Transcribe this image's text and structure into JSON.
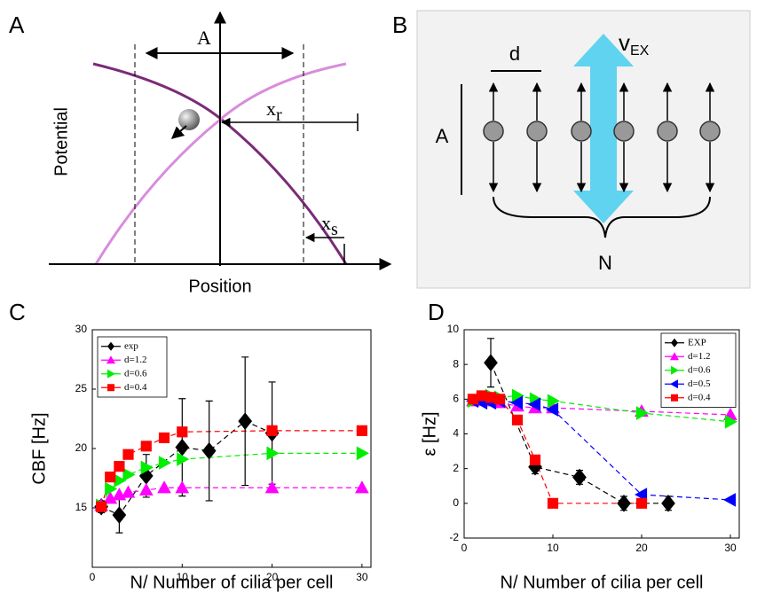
{
  "panels": {
    "A": {
      "letter": "A",
      "amplitude": "A",
      "x_r": {
        "base": "x",
        "sub": "r"
      },
      "x_s": {
        "base": "x",
        "sub": "s"
      },
      "y_label": "Potential",
      "x_label": "Position"
    },
    "B": {
      "letter": "B",
      "d": "d",
      "v": {
        "base": "v",
        "sub": "EX"
      },
      "amplitude": "A",
      "n": "N"
    }
  },
  "chart_data": [
    {
      "type": "line",
      "panel": "C",
      "x_label": "N/ Number of cilia per cell",
      "y_label": "CBF [Hz]",
      "xlim": [
        0,
        31
      ],
      "ylim": [
        10,
        30
      ],
      "xticks": [
        0,
        10,
        20,
        30
      ],
      "yticks": [
        15,
        20,
        25,
        30
      ],
      "line_style": "dashed",
      "legend": "upper-left",
      "series": [
        {
          "name": "exp",
          "color": "#000000",
          "marker": "diamond",
          "x": [
            1,
            3,
            6,
            10,
            13,
            17,
            20
          ],
          "values": [
            15.1,
            14.4,
            17.7,
            20.1,
            19.8,
            22.3,
            21.3
          ],
          "errors": [
            0.5,
            1.5,
            1.8,
            4.1,
            4.2,
            5.4,
            4.3
          ]
        },
        {
          "name": "d=1.2",
          "color": "#ff00ff",
          "marker": "triangle-up",
          "x": [
            1,
            2,
            3,
            4,
            6,
            8,
            10,
            20,
            30
          ],
          "values": [
            15.2,
            15.8,
            16.1,
            16.3,
            16.5,
            16.7,
            16.7,
            16.7,
            16.7
          ]
        },
        {
          "name": "d=0.6",
          "color": "#00ee00",
          "marker": "triangle-right",
          "x": [
            1,
            2,
            3,
            4,
            6,
            8,
            10,
            20,
            30
          ],
          "values": [
            15.2,
            16.6,
            17.3,
            17.8,
            18.4,
            18.8,
            19.1,
            19.6,
            19.6
          ]
        },
        {
          "name": "d=0.4",
          "color": "#ff0000",
          "marker": "square",
          "x": [
            1,
            2,
            3,
            4,
            6,
            8,
            10,
            20,
            30
          ],
          "values": [
            15.1,
            17.6,
            18.5,
            19.5,
            20.2,
            20.9,
            21.4,
            21.5,
            21.5
          ]
        }
      ]
    },
    {
      "type": "line",
      "panel": "D",
      "x_label": "N/ Number of cilia per cell",
      "y_label": "ε [Hz]",
      "xlim": [
        0,
        31
      ],
      "ylim": [
        -2,
        10
      ],
      "xticks": [
        0,
        10,
        20,
        30
      ],
      "yticks": [
        -2,
        0,
        2,
        4,
        6,
        8,
        10
      ],
      "line_style": "dashed",
      "legend": "upper-right",
      "series": [
        {
          "name": "EXP",
          "color": "#000000",
          "marker": "diamond",
          "x": [
            3,
            8,
            13,
            18,
            23
          ],
          "values": [
            8.1,
            2.1,
            1.5,
            0,
            0
          ],
          "errors": [
            1.4,
            0.4,
            0.4,
            0.4,
            0.4
          ]
        },
        {
          "name": "d=1.2",
          "color": "#ff00ff",
          "marker": "triangle-up",
          "x": [
            1,
            2,
            3,
            4,
            6,
            8,
            10,
            20,
            30
          ],
          "values": [
            5.9,
            6.0,
            5.9,
            5.8,
            5.6,
            5.5,
            5.5,
            5.3,
            5.1
          ]
        },
        {
          "name": "d=0.6",
          "color": "#00ee00",
          "marker": "triangle-right",
          "x": [
            1,
            2,
            3,
            4,
            6,
            8,
            10,
            20,
            30
          ],
          "values": [
            5.9,
            6.1,
            6.2,
            6.1,
            6.2,
            6.0,
            5.9,
            5.2,
            4.7
          ]
        },
        {
          "name": "d=0.5",
          "color": "#0000ff",
          "marker": "triangle-left",
          "x": [
            1,
            2,
            3,
            4,
            6,
            8,
            10,
            20,
            30
          ],
          "values": [
            5.9,
            5.8,
            5.8,
            5.9,
            5.8,
            5.7,
            5.4,
            0.5,
            0.2
          ]
        },
        {
          "name": "d=0.4",
          "color": "#ff0000",
          "marker": "square",
          "x": [
            1,
            2,
            3,
            4,
            6,
            8,
            10,
            20
          ],
          "values": [
            6.0,
            6.2,
            6.1,
            6.0,
            4.8,
            2.5,
            0,
            0
          ]
        }
      ]
    }
  ]
}
